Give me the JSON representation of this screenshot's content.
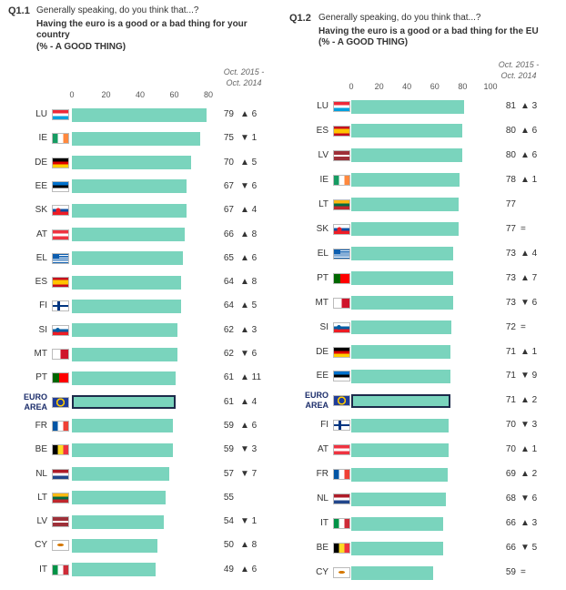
{
  "chart_data": [
    {
      "type": "bar",
      "orientation": "horizontal",
      "question": "Q1.1",
      "subtitle": "Generally speaking, do you think that...?",
      "title": "Having the euro is a good or a bad thing for your country",
      "note": "(% - A GOOD THING)",
      "change_header": [
        "Oct. 2015 -",
        "Oct. 2014"
      ],
      "categories": [
        "LU",
        "IE",
        "DE",
        "EE",
        "SK",
        "AT",
        "EL",
        "ES",
        "FI",
        "SI",
        "MT",
        "PT",
        "EURO AREA",
        "FR",
        "BE",
        "NL",
        "LT",
        "LV",
        "CY",
        "IT"
      ],
      "values": [
        79,
        75,
        70,
        67,
        67,
        66,
        65,
        64,
        64,
        62,
        62,
        61,
        61,
        59,
        59,
        57,
        55,
        54,
        50,
        49
      ],
      "changes": [
        "▲ 6",
        "▼ 1",
        "▲ 5",
        "▼ 6",
        "▲ 4",
        "▲ 8",
        "▲ 6",
        "▲ 8",
        "▲ 5",
        "▲ 3",
        "▼ 6",
        "▲ 11",
        "▲ 4",
        "▲ 6",
        "▼ 3",
        "▼ 7",
        null,
        "▼ 1",
        "▲ 8",
        "▲ 6"
      ],
      "color": "#7ad4bd",
      "xlim": [
        0,
        80
      ],
      "xticks": [
        0,
        20,
        40,
        60,
        80
      ]
    },
    {
      "type": "bar",
      "orientation": "horizontal",
      "question": "Q1.2",
      "subtitle": "Generally speaking, do you think that...?",
      "title": "Having the euro is a good or a bad thing for the EU",
      "note": "(% - A GOOD THING)",
      "change_header": [
        "Oct. 2015 -",
        "Oct. 2014"
      ],
      "categories": [
        "LU",
        "ES",
        "LV",
        "IE",
        "LT",
        "SK",
        "EL",
        "PT",
        "MT",
        "SI",
        "DE",
        "EE",
        "EURO AREA",
        "FI",
        "AT",
        "FR",
        "NL",
        "IT",
        "BE",
        "CY"
      ],
      "values": [
        81,
        80,
        80,
        78,
        77,
        77,
        73,
        73,
        73,
        72,
        71,
        71,
        71,
        70,
        70,
        69,
        68,
        66,
        66,
        59
      ],
      "changes": [
        "▲ 3",
        "▲ 6",
        "▲ 6",
        "▲ 1",
        null,
        "=",
        "▲ 4",
        "▲ 7",
        "▼ 6",
        "=",
        "▲ 1",
        "▼ 9",
        "▲ 2",
        "▼ 3",
        "▲ 1",
        "▲ 2",
        "▼ 6",
        "▲ 3",
        "▼ 5",
        "="
      ],
      "color": "#7ad4bd",
      "xlim": [
        0,
        100
      ],
      "xticks": [
        0,
        20,
        40,
        60,
        80,
        100
      ]
    }
  ]
}
